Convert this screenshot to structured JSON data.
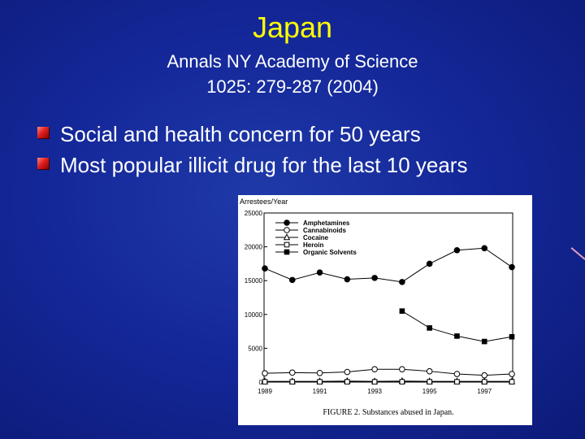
{
  "slide": {
    "title": "Japan",
    "subtitle_line1": "Annals NY Academy of Science",
    "subtitle_line2": "1025: 279-287 (2004)",
    "bullets": [
      "Social and health concern for 50 years",
      "Most popular illicit drug for the last 10 years"
    ],
    "colors": {
      "background": "#15289a",
      "title": "#ffff00",
      "text": "#ffffff",
      "bullet_mark": "#e02020"
    }
  },
  "chart_data": {
    "type": "line",
    "ylabel": "Arrestees/Year",
    "caption": "FIGURE 2. Substances abused in Japan.",
    "x": [
      1989,
      1990,
      1991,
      1992,
      1993,
      1994,
      1995,
      1996,
      1997,
      1998
    ],
    "x_tick_labels": [
      "1989",
      "1991",
      "1993",
      "1995",
      "1997"
    ],
    "y_tick_labels": [
      "0",
      "5000",
      "10000",
      "15000",
      "20000",
      "25000"
    ],
    "ylim": [
      0,
      25000
    ],
    "legend_position": "top-left",
    "grid": false,
    "series": [
      {
        "name": "Amphetamines",
        "marker": "filled-circle",
        "values": [
          16800,
          15100,
          16200,
          15200,
          15400,
          14800,
          17500,
          19500,
          19800,
          17000
        ]
      },
      {
        "name": "Cannabinoids",
        "marker": "open-circle",
        "values": [
          1300,
          1400,
          1350,
          1500,
          1900,
          1900,
          1600,
          1200,
          1000,
          1200
        ]
      },
      {
        "name": "Cocaine",
        "marker": "open-triangle",
        "values": [
          100,
          100,
          100,
          150,
          100,
          150,
          100,
          100,
          100,
          100
        ]
      },
      {
        "name": "Heroin",
        "marker": "open-square",
        "values": [
          50,
          50,
          50,
          50,
          50,
          50,
          50,
          50,
          50,
          50
        ]
      },
      {
        "name": "Organic Solvents",
        "marker": "filled-square",
        "values": [
          null,
          null,
          null,
          null,
          null,
          10500,
          8000,
          6800,
          6000,
          6700
        ]
      }
    ]
  }
}
